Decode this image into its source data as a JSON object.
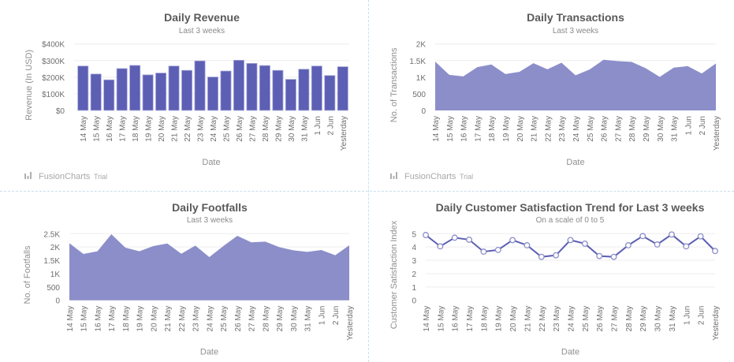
{
  "branding": {
    "logo_text": "FusionCharts",
    "logo_suffix": "Trial"
  },
  "colors": {
    "bar": "#5c5fb3",
    "area": "#8b8ec9",
    "line": "#5c5fb3",
    "marker_fill": "#ffffff",
    "divider": "#c8dff0"
  },
  "chart_data": [
    {
      "id": "revenue",
      "type": "bar",
      "title": "Daily Revenue",
      "subtitle": "Last 3 weeks",
      "xlabel": "Date",
      "ylabel": "Revenue (In USD)",
      "ylim": [
        0,
        400000
      ],
      "yticks": [
        0,
        100000,
        200000,
        300000,
        400000
      ],
      "ytick_labels": [
        "$0",
        "$100K",
        "$200K",
        "$300K",
        "$400K"
      ],
      "grid": true,
      "categories": [
        "14 May",
        "15 May",
        "16 May",
        "17 May",
        "18 May",
        "19 May",
        "20 May",
        "21 May",
        "22 May",
        "23 May",
        "24 May",
        "25 May",
        "26 May",
        "27 May",
        "28 May",
        "29 May",
        "30 May",
        "31 May",
        "1 Jun",
        "2 Jun",
        "Yesterday"
      ],
      "values": [
        267000,
        219000,
        184000,
        252000,
        271000,
        214000,
        225000,
        267000,
        241000,
        298000,
        201000,
        237000,
        302000,
        283000,
        270000,
        241000,
        187000,
        248000,
        267000,
        210000,
        263000
      ],
      "show_logo": true
    },
    {
      "id": "transactions",
      "type": "area",
      "title": "Daily Transactions",
      "subtitle": "Last 3 weeks",
      "xlabel": "Date",
      "ylabel": "No. of Transactions",
      "ylim": [
        0,
        2000
      ],
      "yticks": [
        0,
        500,
        1000,
        1500,
        2000
      ],
      "ytick_labels": [
        "0",
        "500",
        "1K",
        "1.5K",
        "2K"
      ],
      "grid": true,
      "categories": [
        "14 May",
        "15 May",
        "16 May",
        "17 May",
        "18 May",
        "19 May",
        "20 May",
        "21 May",
        "22 May",
        "23 May",
        "24 May",
        "25 May",
        "26 May",
        "27 May",
        "28 May",
        "29 May",
        "30 May",
        "31 May",
        "1 Jun",
        "2 Jun",
        "Yesterday"
      ],
      "values": [
        1469,
        1071,
        1024,
        1302,
        1381,
        1095,
        1159,
        1421,
        1238,
        1436,
        1055,
        1230,
        1524,
        1484,
        1460,
        1270,
        1008,
        1286,
        1333,
        1111,
        1413
      ],
      "show_logo": true
    },
    {
      "id": "footfalls",
      "type": "area",
      "title": "Daily Footfalls",
      "subtitle": "Last 3 weeks",
      "xlabel": "Date",
      "ylabel": "No. of Footfalls",
      "ylim": [
        0,
        2500
      ],
      "yticks": [
        0,
        500,
        1000,
        1500,
        2000,
        2500
      ],
      "ytick_labels": [
        "0",
        "500",
        "1K",
        "1.5K",
        "2K",
        "2.5K"
      ],
      "grid": true,
      "categories": [
        "14 May",
        "15 May",
        "16 May",
        "17 May",
        "18 May",
        "19 May",
        "20 May",
        "21 May",
        "22 May",
        "23 May",
        "24 May",
        "25 May",
        "26 May",
        "27 May",
        "28 May",
        "29 May",
        "30 May",
        "31 May",
        "1 Jun",
        "2 Jun",
        "Yesterday"
      ],
      "values": [
        2144,
        1739,
        1837,
        2479,
        1976,
        1837,
        2035,
        2133,
        1748,
        2055,
        1620,
        2035,
        2420,
        2174,
        2203,
        1996,
        1877,
        1818,
        1887,
        1689,
        2065
      ],
      "show_logo": false
    },
    {
      "id": "satisfaction",
      "type": "line",
      "title": "Daily Customer Satisfaction Trend for Last 3 weeks",
      "subtitle": "On a scale of 0 to 5",
      "xlabel": "Date",
      "ylabel": "Customer Satisfaction Index",
      "ylim": [
        0,
        5
      ],
      "yticks": [
        0,
        1,
        2,
        3,
        4,
        5
      ],
      "ytick_labels": [
        "0",
        "1",
        "2",
        "3",
        "4",
        "5"
      ],
      "grid": true,
      "categories": [
        "14 May",
        "15 May",
        "16 May",
        "17 May",
        "18 May",
        "19 May",
        "20 May",
        "21 May",
        "22 May",
        "23 May",
        "24 May",
        "25 May",
        "26 May",
        "27 May",
        "28 May",
        "29 May",
        "30 May",
        "31 May",
        "1 Jun",
        "2 Jun",
        "Yesterday"
      ],
      "values": [
        4.9,
        4.05,
        4.7,
        4.55,
        3.65,
        3.78,
        4.52,
        4.13,
        3.26,
        3.38,
        4.52,
        4.25,
        3.32,
        3.26,
        4.13,
        4.82,
        4.19,
        4.94,
        4.05,
        4.8,
        3.7
      ],
      "show_logo": false
    }
  ]
}
